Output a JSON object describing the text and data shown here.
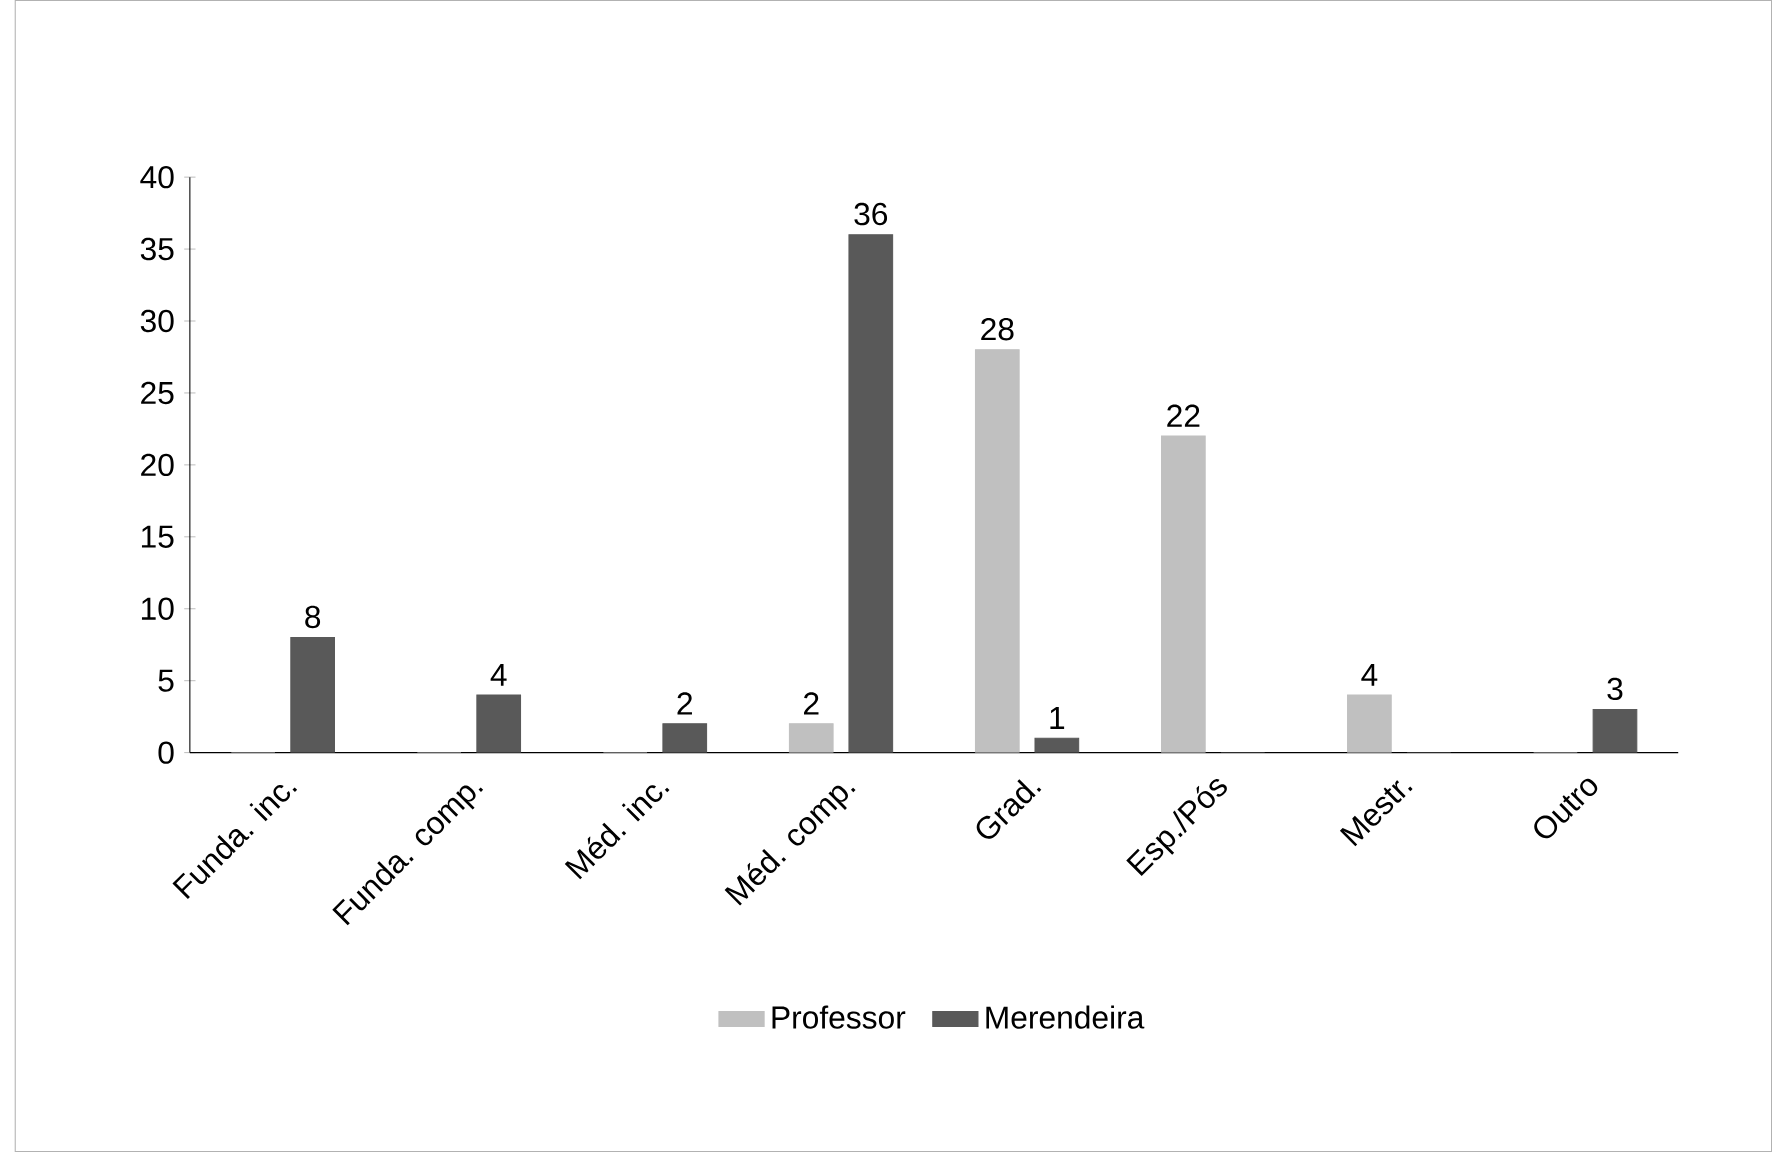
{
  "chart_data": {
    "type": "bar",
    "categories": [
      "Funda. inc.",
      "Funda. comp.",
      "Méd. inc.",
      "Méd. comp.",
      "Grad.",
      "Esp./Pós",
      "Mestr.",
      "Outro"
    ],
    "series": [
      {
        "name": "Professor",
        "color": "#c0c0c0",
        "values": [
          0,
          0,
          0,
          2,
          28,
          22,
          4,
          0
        ],
        "value_labels": [
          null,
          null,
          null,
          "2",
          "28",
          "22",
          "4",
          null
        ]
      },
      {
        "name": "Merendeira",
        "color": "#595959",
        "values": [
          8,
          4,
          2,
          36,
          1,
          0,
          0,
          3
        ],
        "value_labels": [
          "8",
          "4",
          "2",
          "36",
          "1",
          null,
          null,
          "3"
        ]
      }
    ],
    "ylim": [
      0,
      40
    ],
    "yticks": [
      0,
      5,
      10,
      15,
      20,
      25,
      30,
      35,
      40
    ],
    "grid": false,
    "legend": "bottom"
  }
}
